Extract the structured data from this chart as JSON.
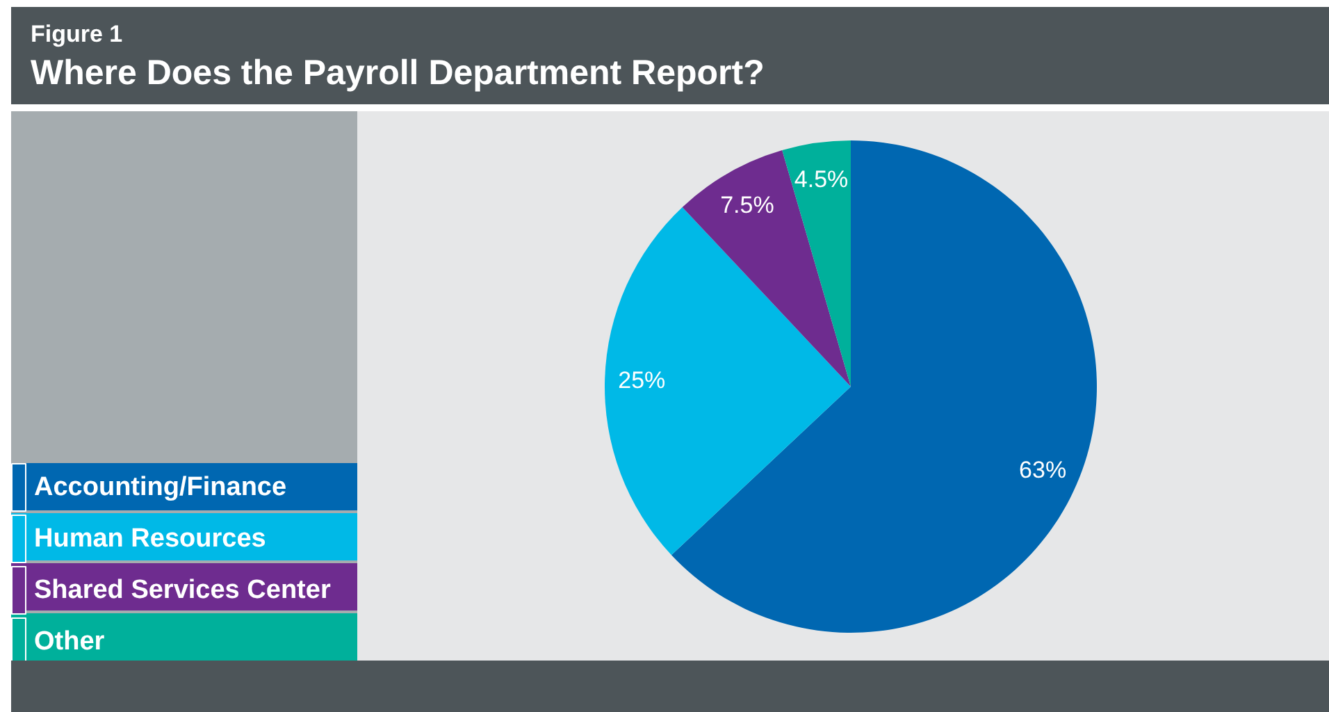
{
  "chart_data": {
    "type": "pie",
    "title": "Where Does the Payroll Department Report?",
    "subtitle": "Figure 1",
    "categories": [
      "Accounting/Finance",
      "Human Resources",
      "Shared Services Center",
      "Other"
    ],
    "values": [
      63,
      25,
      7.5,
      4.5
    ],
    "colors": [
      "#0067b1",
      "#00b9e7",
      "#6e2c8f",
      "#00b09b"
    ],
    "data_labels": true,
    "value_labels": [
      "63%",
      "25%",
      "7.5%",
      "4.5%"
    ],
    "legend": "bottom left"
  }
}
